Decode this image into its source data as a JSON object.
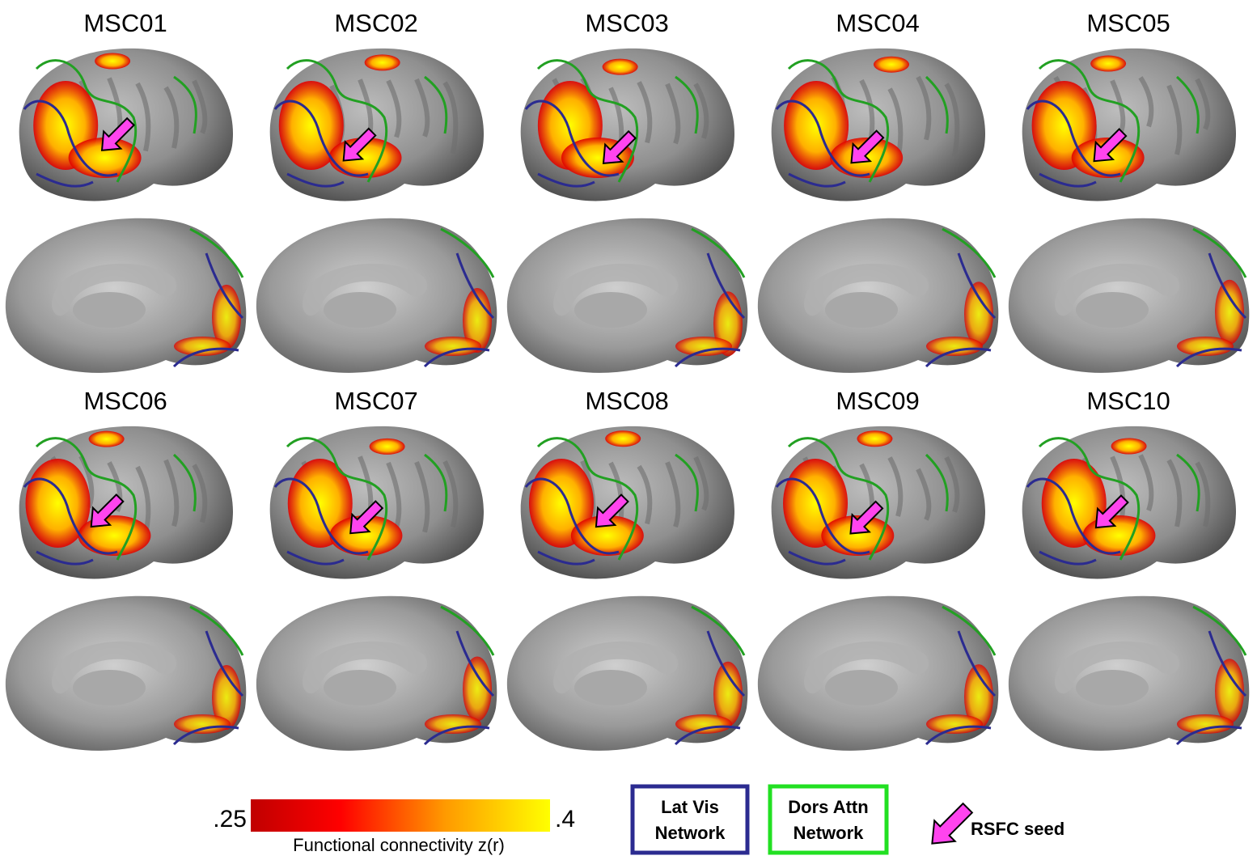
{
  "subjects": [
    "MSC01",
    "MSC02",
    "MSC03",
    "MSC04",
    "MSC05",
    "MSC06",
    "MSC07",
    "MSC08",
    "MSC09",
    "MSC10"
  ],
  "colorbar": {
    "min_label": ".25",
    "max_label": ".4",
    "label": "Functional connectivity z(r)"
  },
  "legend": {
    "lat_vis": [
      "Lat Vis",
      "Network"
    ],
    "dors_attn": [
      "Dors Attn",
      "Network"
    ],
    "seed": "RSFC seed"
  }
}
